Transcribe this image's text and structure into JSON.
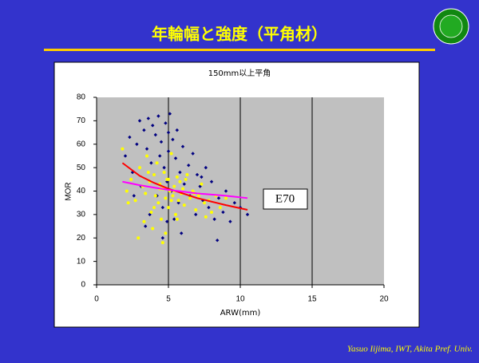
{
  "header": {
    "title": "年輪幅と強度（平角材）"
  },
  "footer": "Yasuo Iijima, IWT, Akita Pref.  Univ.",
  "chart_data": {
    "type": "scatter",
    "title": "150mm以上平角",
    "xlabel": "ARW(mm)",
    "ylabel": "MOR",
    "xlim": [
      0,
      20
    ],
    "ylim": [
      0,
      80
    ],
    "xticks": [
      0,
      5,
      10,
      15,
      20
    ],
    "yticks": [
      0,
      10,
      20,
      30,
      40,
      50,
      60,
      70,
      80
    ],
    "grid": "x",
    "series": [
      {
        "type": "scatter",
        "marker": "diamond",
        "color": "#000080",
        "x": [
          2.0,
          2.3,
          2.5,
          2.8,
          3.0,
          3.1,
          3.3,
          3.5,
          3.6,
          3.8,
          3.9,
          4.0,
          4.1,
          4.2,
          4.3,
          4.4,
          4.5,
          4.6,
          4.7,
          4.8,
          4.9,
          5.0,
          5.1,
          5.2,
          5.3,
          5.4,
          5.5,
          5.6,
          5.7,
          5.8,
          5.9,
          6.0,
          6.2,
          6.4,
          6.5,
          6.7,
          6.9,
          7.0,
          7.2,
          7.4,
          7.6,
          7.8,
          8.0,
          8.2,
          8.5,
          8.8,
          9.0,
          9.3,
          9.6,
          10.0,
          10.5,
          3.4,
          4.6,
          5.0,
          3.7,
          6.1,
          2.6,
          4.9,
          7.3,
          8.4
        ],
        "values": [
          55,
          63,
          48,
          60,
          70,
          42,
          66,
          58,
          71,
          52,
          68,
          47,
          64,
          38,
          72,
          55,
          61,
          33,
          50,
          69,
          44,
          57,
          73,
          40,
          62,
          28,
          54,
          66,
          35,
          48,
          22,
          59,
          45,
          51,
          38,
          56,
          30,
          47,
          42,
          36,
          50,
          33,
          44,
          28,
          37,
          31,
          40,
          27,
          35,
          33,
          30,
          25,
          20,
          65,
          30,
          43,
          38,
          27,
          46,
          19
        ]
      },
      {
        "type": "scatter",
        "marker": "circle",
        "color": "#ffff00",
        "x": [
          1.8,
          2.1,
          2.4,
          2.7,
          3.0,
          3.2,
          3.4,
          3.5,
          3.7,
          3.8,
          4.0,
          4.1,
          4.2,
          4.3,
          4.4,
          4.5,
          4.6,
          4.7,
          4.8,
          4.9,
          5.0,
          5.1,
          5.2,
          5.3,
          5.4,
          5.5,
          5.6,
          5.7,
          5.8,
          5.9,
          6.0,
          6.1,
          6.3,
          6.5,
          6.7,
          6.9,
          7.1,
          7.3,
          7.5,
          7.8,
          8.0,
          8.3,
          8.6,
          9.0,
          2.9,
          3.3,
          3.9,
          4.4,
          4.8,
          5.2,
          5.6,
          6.2,
          2.2,
          4.6,
          5.0,
          3.6,
          4.0,
          6.8,
          7.6,
          5.4
        ],
        "values": [
          58,
          40,
          45,
          36,
          50,
          42,
          39,
          55,
          44,
          31,
          47,
          38,
          52,
          35,
          43,
          28,
          41,
          48,
          37,
          45,
          33,
          40,
          56,
          38,
          42,
          30,
          46,
          36,
          44,
          39,
          41,
          34,
          47,
          37,
          40,
          32,
          38,
          43,
          35,
          36,
          31,
          38,
          33,
          37,
          20,
          27,
          24,
          41,
          22,
          36,
          28,
          45,
          35,
          18,
          45,
          48,
          33,
          39,
          29,
          40
        ]
      },
      {
        "type": "line",
        "color": "#ff0000",
        "x": [
          1.8,
          3,
          4,
          5,
          6,
          7,
          8,
          9,
          10.5
        ],
        "values": [
          52,
          46.5,
          43.5,
          41,
          39,
          37,
          35.5,
          34,
          32
        ]
      },
      {
        "type": "line",
        "color": "#ff00ff",
        "x": [
          1.8,
          3,
          4,
          5,
          6,
          7,
          8,
          9,
          10.5
        ],
        "values": [
          44,
          42.5,
          41.5,
          40.5,
          39.8,
          39,
          38.5,
          38,
          37
        ]
      }
    ],
    "annotations": [
      {
        "text": "E70"
      }
    ]
  }
}
